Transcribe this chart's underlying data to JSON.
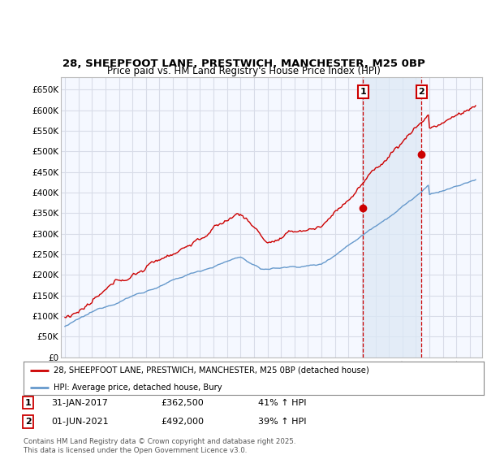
{
  "title_line1": "28, SHEEPFOOT LANE, PRESTWICH, MANCHESTER, M25 0BP",
  "title_line2": "Price paid vs. HM Land Registry's House Price Index (HPI)",
  "hpi_color": "#6699cc",
  "price_color": "#cc0000",
  "marker1_x": 2017.08,
  "marker2_x": 2021.42,
  "marker1_price": 362500,
  "marker2_price": 492000,
  "legend_line1": "28, SHEEPFOOT LANE, PRESTWICH, MANCHESTER, M25 0BP (detached house)",
  "legend_line2": "HPI: Average price, detached house, Bury",
  "footer": "Contains HM Land Registry data © Crown copyright and database right 2025.\nThis data is licensed under the Open Government Licence v3.0.",
  "bg_color": "#ffffff",
  "plot_bg_color": "#f5f8ff",
  "grid_color": "#d8dce8",
  "shade_color": "#dce8f5",
  "ytick_labels": [
    "£0",
    "£50K",
    "£100K",
    "£150K",
    "£200K",
    "£250K",
    "£300K",
    "£350K",
    "£400K",
    "£450K",
    "£500K",
    "£550K",
    "£600K",
    "£650K"
  ]
}
